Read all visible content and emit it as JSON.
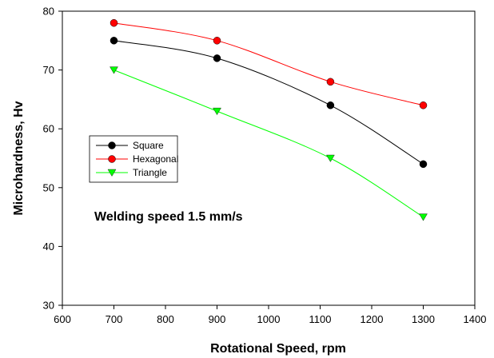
{
  "chart_data": {
    "type": "line",
    "title": "",
    "xlabel": "Rotational Speed, rpm",
    "ylabel": "Microhardness, Hv",
    "xlim": [
      600,
      1400
    ],
    "ylim": [
      30,
      80
    ],
    "xticks": [
      600,
      700,
      800,
      900,
      1000,
      1100,
      1200,
      1300,
      1400
    ],
    "yticks": [
      30,
      40,
      50,
      60,
      70,
      80
    ],
    "grid": false,
    "legend_position": "center-left",
    "annotation": "Welding speed 1.5 mm/s",
    "series": [
      {
        "name": "Square",
        "color": "#000000",
        "marker": "circle",
        "x": [
          700,
          900,
          1120,
          1300
        ],
        "y": [
          75,
          72,
          64,
          54
        ]
      },
      {
        "name": "Hexagonal",
        "color": "#ff0000",
        "marker": "circle",
        "x": [
          700,
          900,
          1120,
          1300
        ],
        "y": [
          78,
          75,
          68,
          64
        ]
      },
      {
        "name": "Triangle",
        "color": "#00ff00",
        "marker": "triangle-down",
        "x": [
          700,
          900,
          1120,
          1300
        ],
        "y": [
          70,
          63,
          55,
          45
        ]
      }
    ]
  }
}
